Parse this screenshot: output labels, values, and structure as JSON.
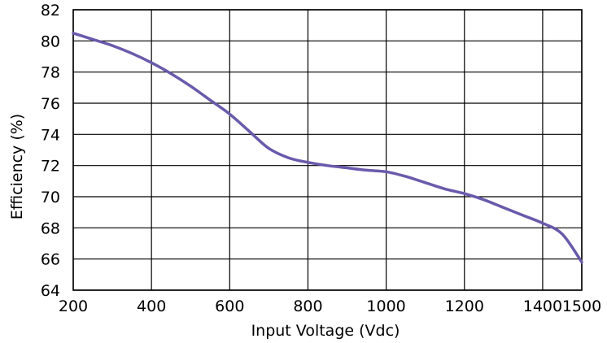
{
  "chart_data": {
    "type": "line",
    "title": "",
    "xlabel": "Input Voltage (Vdc)",
    "ylabel": "Efficiency (%)",
    "xlim": [
      200,
      1500
    ],
    "ylim": [
      64,
      82
    ],
    "x_ticks": [
      200,
      400,
      600,
      800,
      1000,
      1200,
      1400,
      1500
    ],
    "x_tick_labels": [
      "200",
      "400",
      "600",
      "800",
      "1000",
      "1200",
      "1400",
      "1500"
    ],
    "y_ticks": [
      64,
      66,
      68,
      70,
      72,
      74,
      76,
      78,
      80,
      82
    ],
    "y_tick_labels": [
      "64",
      "66",
      "68",
      "70",
      "72",
      "74",
      "76",
      "78",
      "80",
      "82"
    ],
    "grid": true,
    "legend": "none",
    "line_color": "#6a5aac",
    "grid_color": "#000000",
    "series": [
      {
        "x": [
          200,
          250,
          300,
          350,
          400,
          450,
          500,
          550,
          600,
          650,
          700,
          750,
          800,
          850,
          900,
          950,
          1000,
          1050,
          1100,
          1150,
          1200,
          1250,
          1300,
          1350,
          1400,
          1450,
          1500
        ],
        "values": [
          80.5,
          80.1,
          79.7,
          79.2,
          78.6,
          77.9,
          77.1,
          76.2,
          75.3,
          74.2,
          73.1,
          72.5,
          72.2,
          72.0,
          71.85,
          71.7,
          71.6,
          71.3,
          70.9,
          70.5,
          70.2,
          69.8,
          69.3,
          68.8,
          68.3,
          67.6,
          65.8
        ]
      }
    ]
  }
}
